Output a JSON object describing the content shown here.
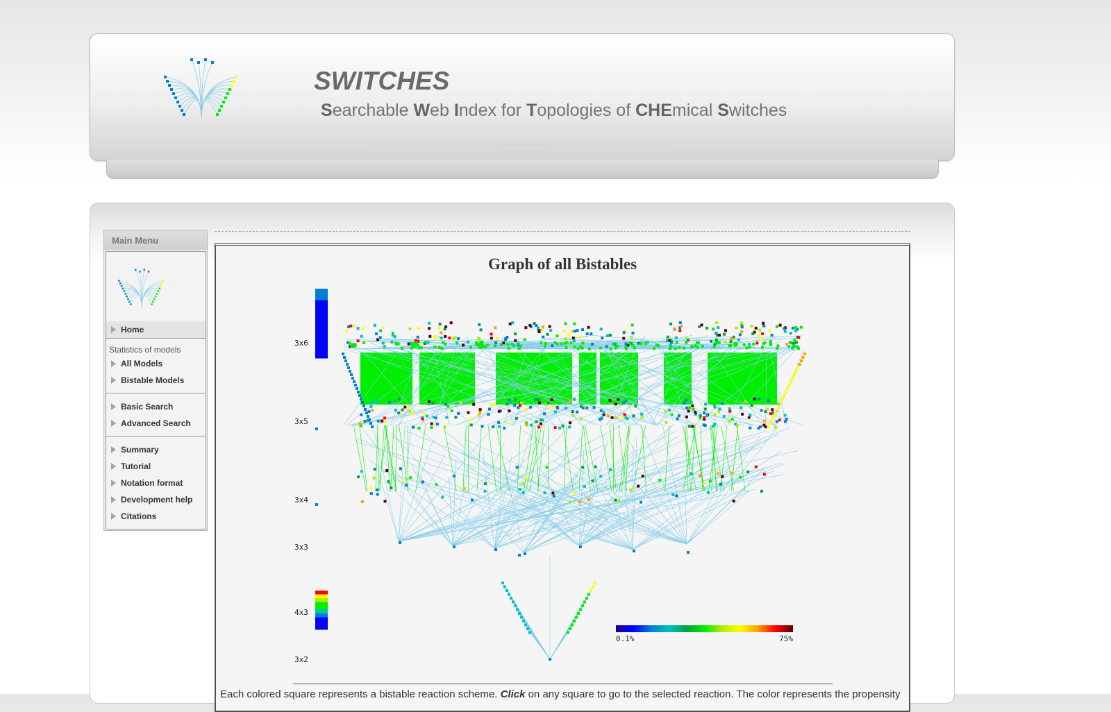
{
  "header": {
    "title": "SWITCHES",
    "subtitle_parts": [
      {
        "cap": "S",
        "rest": "earchable "
      },
      {
        "cap": "W",
        "rest": "eb "
      },
      {
        "cap": "I",
        "rest": "ndex for "
      },
      {
        "cap": "T",
        "rest": "opologies of "
      },
      {
        "cap": "CHE",
        "rest": "mical "
      },
      {
        "cap": "S",
        "rest": "witches"
      }
    ]
  },
  "sidebar": {
    "title": "Main Menu",
    "home": "Home",
    "stats_label": "Statistics of models",
    "stats_items": [
      "All Models",
      "Bistable Models"
    ],
    "search_items": [
      "Basic Search",
      "Advanced Search"
    ],
    "info_items": [
      "Summary",
      "Tutorial",
      "Notation format",
      "Development help",
      "Citations"
    ]
  },
  "graph": {
    "title": "Graph of all Bistables",
    "row_labels": [
      "3x6",
      "3x5",
      "3x4",
      "3x3",
      "4x3",
      "3x2"
    ],
    "scale_min": "0.1%",
    "scale_max": "75%"
  },
  "caption": {
    "before": "Each colored square represents a bistable reaction scheme. ",
    "emph": "Click",
    "after": " on any square to go to the selected reaction. The color represents the propensity"
  },
  "colors": {
    "link": "#87ceeb",
    "accent_green": "#00ee00",
    "scale": [
      "#1a0099",
      "#0000ff",
      "#0080d0",
      "#00c0c0",
      "#00a040",
      "#00ee00",
      "#b0ee00",
      "#ffff00",
      "#ffa000",
      "#ff0000",
      "#600000"
    ]
  }
}
